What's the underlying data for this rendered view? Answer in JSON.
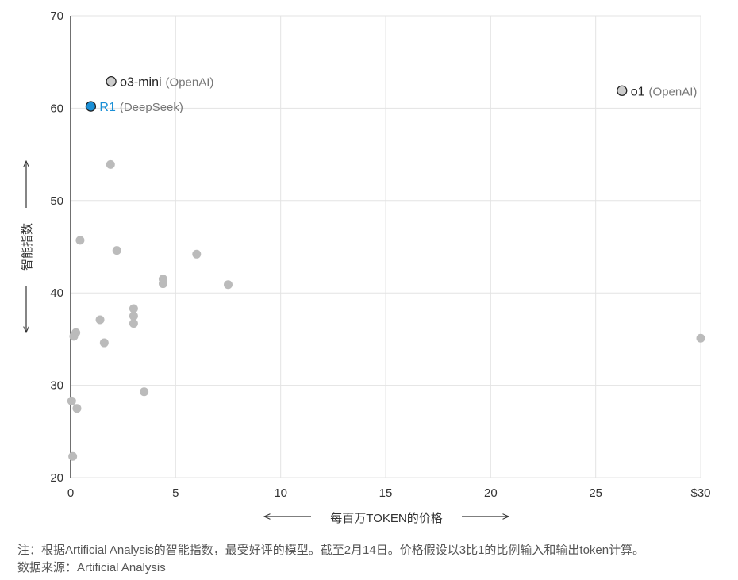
{
  "chart_data": {
    "type": "scatter",
    "xlabel": "每百万TOKEN的价格",
    "ylabel": "智能指数",
    "xlim": [
      0,
      30
    ],
    "ylim": [
      20,
      70
    ],
    "x_ticks": [
      0,
      5,
      10,
      15,
      20,
      25,
      30
    ],
    "x_tick_labels": [
      "0",
      "5",
      "10",
      "15",
      "20",
      "25",
      "$30"
    ],
    "y_ticks": [
      20,
      30,
      40,
      50,
      60,
      70
    ],
    "y_tick_labels": [
      "20",
      "30",
      "40",
      "50",
      "60",
      "70"
    ],
    "grid": true,
    "colors": {
      "default_point": "#bbbbbb",
      "highlight_point": "#1a8fd6",
      "labeled_point": "#cccccc",
      "grid": "#e3e3e3",
      "axis": "#333333"
    },
    "highlighted": [
      {
        "name": "o3-mini",
        "org": "(OpenAI)",
        "x": 1.93,
        "y": 62.9,
        "color": "#cccccc",
        "name_color": "#222222"
      },
      {
        "name": "R1",
        "org": "(DeepSeek)",
        "x": 0.96,
        "y": 60.2,
        "color": "#1a8fd6",
        "name_color": "#1a8fd6"
      },
      {
        "name": "o1",
        "org": "(OpenAI)",
        "x": 26.25,
        "y": 61.9,
        "color": "#cccccc",
        "name_color": "#222222"
      }
    ],
    "points": [
      {
        "x": 1.9,
        "y": 53.9
      },
      {
        "x": 0.45,
        "y": 45.7
      },
      {
        "x": 2.2,
        "y": 44.6
      },
      {
        "x": 6.0,
        "y": 44.2
      },
      {
        "x": 4.4,
        "y": 41.5
      },
      {
        "x": 4.4,
        "y": 41.0
      },
      {
        "x": 7.5,
        "y": 40.9
      },
      {
        "x": 3.0,
        "y": 38.3
      },
      {
        "x": 3.0,
        "y": 37.5
      },
      {
        "x": 3.0,
        "y": 36.7
      },
      {
        "x": 1.4,
        "y": 37.1
      },
      {
        "x": 0.25,
        "y": 35.7
      },
      {
        "x": 0.15,
        "y": 35.3
      },
      {
        "x": 1.6,
        "y": 34.6
      },
      {
        "x": 30.0,
        "y": 35.1
      },
      {
        "x": 3.5,
        "y": 29.3
      },
      {
        "x": 0.05,
        "y": 28.3
      },
      {
        "x": 0.3,
        "y": 27.5
      },
      {
        "x": 0.1,
        "y": 22.3
      }
    ]
  },
  "footnotes": {
    "note": "注：根据Artificial Analysis的智能指数，最受好评的模型。截至2月14日。价格假设以3比1的比例输入和输出token计算。",
    "source": "数据来源：Artificial Analysis"
  }
}
